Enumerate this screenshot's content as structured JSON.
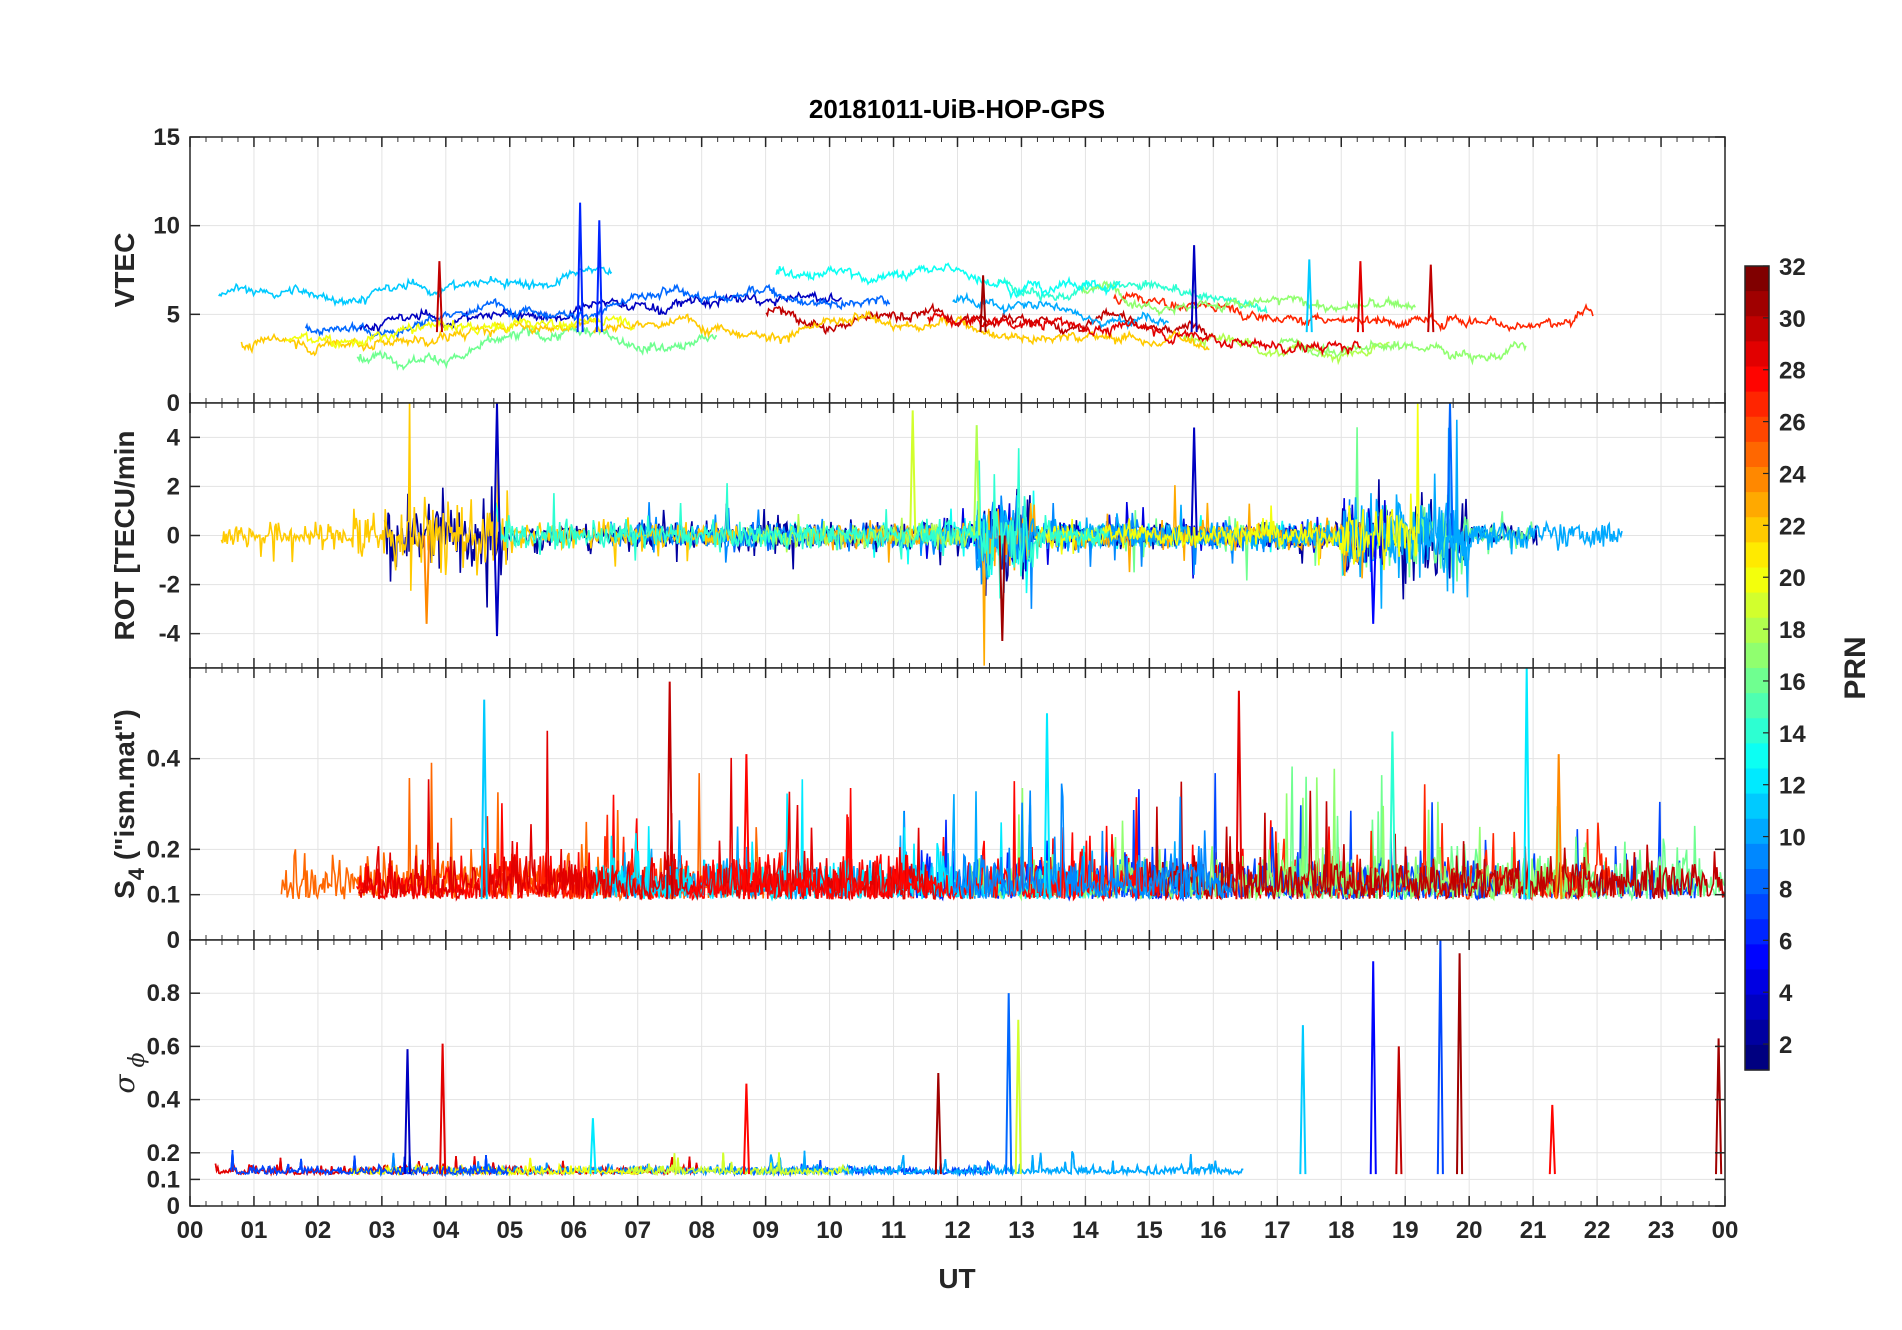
{
  "chart_data": {
    "type": "line",
    "title": "20181011-UiB-HOP-GPS",
    "xlabel": "UT",
    "x_ticks": [
      "00",
      "01",
      "02",
      "03",
      "04",
      "05",
      "06",
      "07",
      "08",
      "09",
      "10",
      "11",
      "12",
      "13",
      "14",
      "15",
      "16",
      "17",
      "18",
      "19",
      "20",
      "21",
      "22",
      "23",
      "00"
    ],
    "xlim_hours": [
      0,
      24
    ],
    "grid": true,
    "colorbar": {
      "label": "PRN",
      "range": [
        1,
        32
      ],
      "ticks": [
        "2",
        "4",
        "6",
        "8",
        "10",
        "12",
        "14",
        "16",
        "18",
        "20",
        "22",
        "24",
        "26",
        "28",
        "30",
        "32"
      ],
      "colormap": "jet"
    },
    "panels": [
      {
        "ylabel": "VTEC",
        "ylim": [
          0,
          15
        ],
        "y_ticks": [
          {
            "v": 0,
            "label": "0"
          },
          {
            "v": 5,
            "label": "5"
          },
          {
            "v": 10,
            "label": "10"
          },
          {
            "v": 15,
            "label": "15"
          }
        ],
        "baseline": 3.5,
        "noise": 0.6,
        "kind": "smooth",
        "spikes": [
          {
            "t": 6.1,
            "v": 11.3,
            "prn": 6
          },
          {
            "t": 6.4,
            "v": 10.3,
            "prn": 6
          },
          {
            "t": 15.7,
            "v": 8.9,
            "prn": 3
          },
          {
            "t": 3.9,
            "v": 8.0,
            "prn": 30
          },
          {
            "t": 18.3,
            "v": 8.0,
            "prn": 29
          },
          {
            "t": 19.4,
            "v": 7.8,
            "prn": 30
          },
          {
            "t": 12.4,
            "v": 7.2,
            "prn": 31
          },
          {
            "t": 17.5,
            "v": 8.1,
            "prn": 11
          }
        ]
      },
      {
        "ylabel": "ROT [TECU/min",
        "ylim": [
          -5.4,
          5.4
        ],
        "y_ticks": [
          {
            "v": -4,
            "label": "-4"
          },
          {
            "v": -2,
            "label": "-2"
          },
          {
            "v": 0,
            "label": "0"
          },
          {
            "v": 2,
            "label": "2"
          },
          {
            "v": 4,
            "label": "4"
          }
        ],
        "baseline": 0,
        "noise": 0.35,
        "kind": "rot",
        "spikes": [
          {
            "t": 4.8,
            "v": 5.4,
            "prn": 3
          },
          {
            "t": 4.8,
            "v": -4.1,
            "prn": 3
          },
          {
            "t": 11.3,
            "v": 5.1,
            "prn": 19
          },
          {
            "t": 12.3,
            "v": 4.5,
            "prn": 18
          },
          {
            "t": 12.7,
            "v": -4.3,
            "prn": 31
          },
          {
            "t": 15.7,
            "v": 4.4,
            "prn": 3
          },
          {
            "t": 19.7,
            "v": 5.4,
            "prn": 8
          },
          {
            "t": 3.7,
            "v": -3.6,
            "prn": 24
          },
          {
            "t": 18.5,
            "v": -3.6,
            "prn": 5
          }
        ]
      },
      {
        "ylabel": "S",
        "ylabel_sub": "4",
        "ylabel_rest": " (\"ism.mat\")",
        "ylim": [
          0,
          0.6
        ],
        "y_ticks": [
          {
            "v": 0,
            "label": "0"
          },
          {
            "v": 0.1,
            "label": "0.1"
          },
          {
            "v": 0.2,
            "label": "0.2"
          },
          {
            "v": 0.4,
            "label": "0.4"
          }
        ],
        "baseline": 0.09,
        "noise": 0.06,
        "kind": "positive",
        "spikes": [
          {
            "t": 7.5,
            "v": 0.57,
            "prn": 30
          },
          {
            "t": 20.9,
            "v": 0.6,
            "prn": 12
          },
          {
            "t": 16.4,
            "v": 0.55,
            "prn": 29
          },
          {
            "t": 4.6,
            "v": 0.53,
            "prn": 11
          },
          {
            "t": 13.4,
            "v": 0.5,
            "prn": 12
          },
          {
            "t": 8.7,
            "v": 0.41,
            "prn": 28
          },
          {
            "t": 18.8,
            "v": 0.46,
            "prn": 14
          },
          {
            "t": 21.4,
            "v": 0.41,
            "prn": 24
          }
        ]
      },
      {
        "ylabel": "σ",
        "ylabel_sub": "ϕ",
        "ylim": [
          0,
          1
        ],
        "y_ticks": [
          {
            "v": 0,
            "label": "0"
          },
          {
            "v": 0.1,
            "label": "0.1"
          },
          {
            "v": 0.2,
            "label": "0.2"
          },
          {
            "v": 0.4,
            "label": "0.4"
          },
          {
            "v": 0.6,
            "label": "0.6"
          },
          {
            "v": 0.8,
            "label": "0.8"
          }
        ],
        "baseline": 0.12,
        "noise": 0.02,
        "kind": "positive",
        "spikes": [
          {
            "t": 3.4,
            "v": 0.59,
            "prn": 3
          },
          {
            "t": 3.95,
            "v": 0.61,
            "prn": 29
          },
          {
            "t": 8.7,
            "v": 0.46,
            "prn": 28
          },
          {
            "t": 11.7,
            "v": 0.5,
            "prn": 31
          },
          {
            "t": 12.8,
            "v": 0.8,
            "prn": 8
          },
          {
            "t": 12.95,
            "v": 0.7,
            "prn": 19
          },
          {
            "t": 17.4,
            "v": 0.68,
            "prn": 11
          },
          {
            "t": 18.5,
            "v": 0.92,
            "prn": 5
          },
          {
            "t": 18.9,
            "v": 0.6,
            "prn": 30
          },
          {
            "t": 19.55,
            "v": 1.0,
            "prn": 7
          },
          {
            "t": 19.85,
            "v": 0.95,
            "prn": 31
          },
          {
            "t": 23.9,
            "v": 0.63,
            "prn": 31
          },
          {
            "t": 21.3,
            "v": 0.38,
            "prn": 28
          },
          {
            "t": 6.3,
            "v": 0.33,
            "prn": 12
          }
        ]
      }
    ]
  }
}
